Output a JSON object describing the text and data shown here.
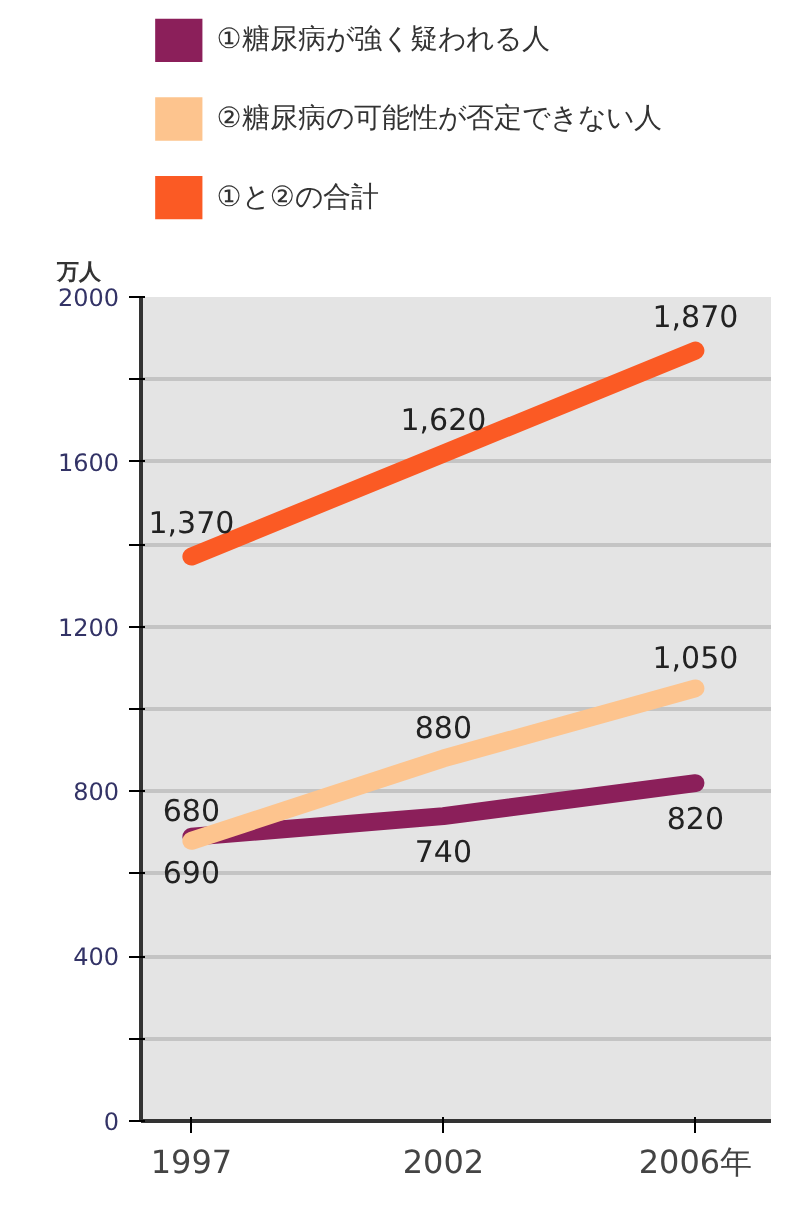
{
  "chart_data": {
    "type": "line",
    "categories": [
      "1997",
      "2002",
      "2006年"
    ],
    "ylabel": "万人",
    "ylim": [
      0,
      2000
    ],
    "yticks": [
      0,
      {
        "value": 200,
        "label": null
      },
      400,
      {
        "value": 600,
        "label": null
      },
      800,
      {
        "value": 1000,
        "label": null
      },
      1200,
      {
        "value": 1400,
        "label": null
      },
      1600,
      {
        "value": 1800,
        "label": null
      },
      2000
    ],
    "grid": "y",
    "legend": "top",
    "series": [
      {
        "name": "①糖尿病が強く疑われる人",
        "color": "#8b1f5a",
        "values": [
          690,
          740,
          820
        ],
        "value_labels": [
          "690",
          "740",
          "820"
        ]
      },
      {
        "name": "②糖尿病の可能性が否定できない人",
        "color": "#fdc48e",
        "values": [
          680,
          880,
          1050
        ],
        "value_labels": [
          "680",
          "880",
          "1,050"
        ]
      },
      {
        "name": "①と②の合計",
        "color": "#fb5a24",
        "values": [
          1370,
          1620,
          1870
        ],
        "value_labels": [
          "1,370",
          "1,620",
          "1,870"
        ]
      }
    ]
  }
}
